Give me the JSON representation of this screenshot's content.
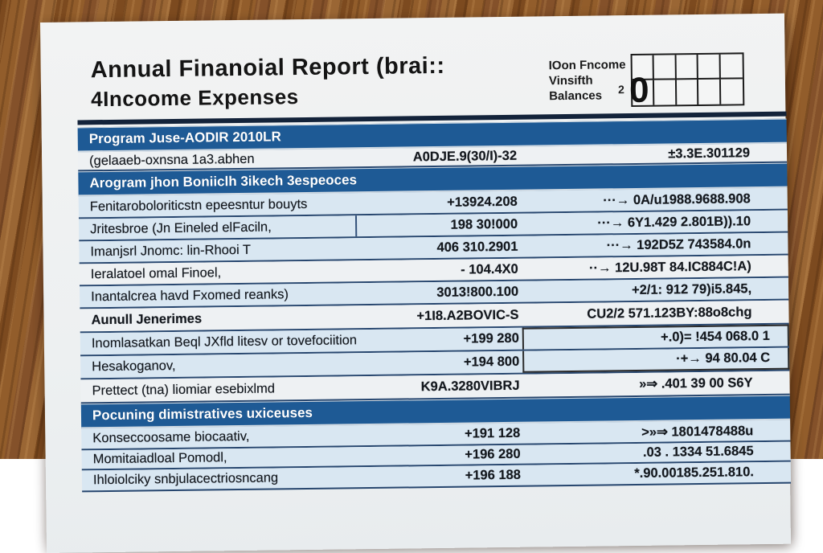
{
  "title": {
    "line1": "Annual Finanoial Report (brai::",
    "line2": "4Incoome Expenses"
  },
  "corner": {
    "labels": [
      "IOon Fncome",
      "Vinsifth",
      "Balances"
    ],
    "small_digit": "2",
    "big_digit": "0"
  },
  "colors": {
    "header_blue": "#1e5a95",
    "row_light_blue": "#d9e7f2",
    "row_white": "#eef1f3",
    "navy_line": "#27466e",
    "wood_brown": "#8a5627",
    "paper": "#f1f2f3"
  },
  "table": {
    "rows": [
      {
        "type": "header",
        "label": "Program Juse-AODIR 2010LR",
        "h": "h28"
      },
      {
        "type": "data",
        "label": "(gelaaeb-oxnsna 1a3.abhen",
        "mid": "A0DJE.9(30/I)-32",
        "right": "±3.3E.301129",
        "shade": "white",
        "h": "h22"
      },
      {
        "type": "header",
        "label": "Arogram jhon Boniiclh 3ikech 3espeoces",
        "h": "h28"
      },
      {
        "type": "data",
        "label": "Fenitaroboloriticstn epeesntur bouyts",
        "mid": "+13924.208",
        "right": "···→  0A/u1988.9688.908",
        "shade": "blue",
        "h": "h26"
      },
      {
        "type": "data",
        "label": "Jritesbroe (Jn Eineled elFaciln,",
        "mid": "198 30!000",
        "right": "···→ 6Y1.429 2.801B)).10",
        "shade": "blue",
        "divider": true,
        "h": "h26"
      },
      {
        "type": "data",
        "label": "Imanjsrl Jnomc: lin-Rhooi T",
        "mid": "406 310.2901",
        "right": "···→ 192D5Z 743584.0n",
        "shade": "blue",
        "h": "h26"
      },
      {
        "type": "data",
        "label": "Ieralatoel omal Finoel,",
        "mid": "- 104.4X0",
        "right": "··→ 12U.98T 84.IC884C!A)",
        "shade": "white",
        "h": "h26"
      },
      {
        "type": "data",
        "label": "Inantalcrea havd Fxomed reanks)",
        "mid": "3013!800.100",
        "right": "+2/1: 912 79)i5.845,",
        "shade": "blue",
        "h": "h26"
      },
      {
        "type": "data",
        "label": "Aunull Jenerimes",
        "mid": "+1I8.A2BOVIC-S",
        "right": "CU2/2 571.123BY:88o8chg",
        "shade": "white",
        "bold": true,
        "h": "h28"
      },
      {
        "type": "data",
        "label": "Inomlasatkan Beql JXfld litesv or tovefociition",
        "mid": "+199 280",
        "right": "+.0)= !454 068.0 1",
        "shade": "blue",
        "boxTop": true,
        "h": "h27"
      },
      {
        "type": "data",
        "label": "Hesakoganov,",
        "mid": "+194 800",
        "right": "·+→ 94 80.04 C",
        "shade": "blue",
        "boxBottom": true,
        "h": "h27"
      },
      {
        "type": "data",
        "label": "Prettect (tna) liomiar esebixlmd",
        "mid": "K9A.3280VIBRJ",
        "right": "»⇒ .401 39 00 S6Y",
        "shade": "white",
        "h": "h28"
      },
      {
        "type": "header",
        "label": "Pocuning dimistratives uxiceuses",
        "h": "h30"
      },
      {
        "type": "data",
        "label": "Konseccoosame biocaativ,",
        "mid": "+191 128",
        "right": ">»⇒ 1801478488u",
        "shade": "blue",
        "h": "h25"
      },
      {
        "type": "data",
        "label": "Momitaiadloal Pomodl,",
        "mid": "+196 280",
        "right": ".03 . 1334 51.6845",
        "shade": "blue",
        "h": "h23"
      },
      {
        "type": "data",
        "label": "Ihloiolciky snbjulacectriosncang",
        "mid": "+196 188",
        "right": "*.90.00185.251.810.",
        "shade": "blue",
        "h": "h25"
      }
    ]
  }
}
